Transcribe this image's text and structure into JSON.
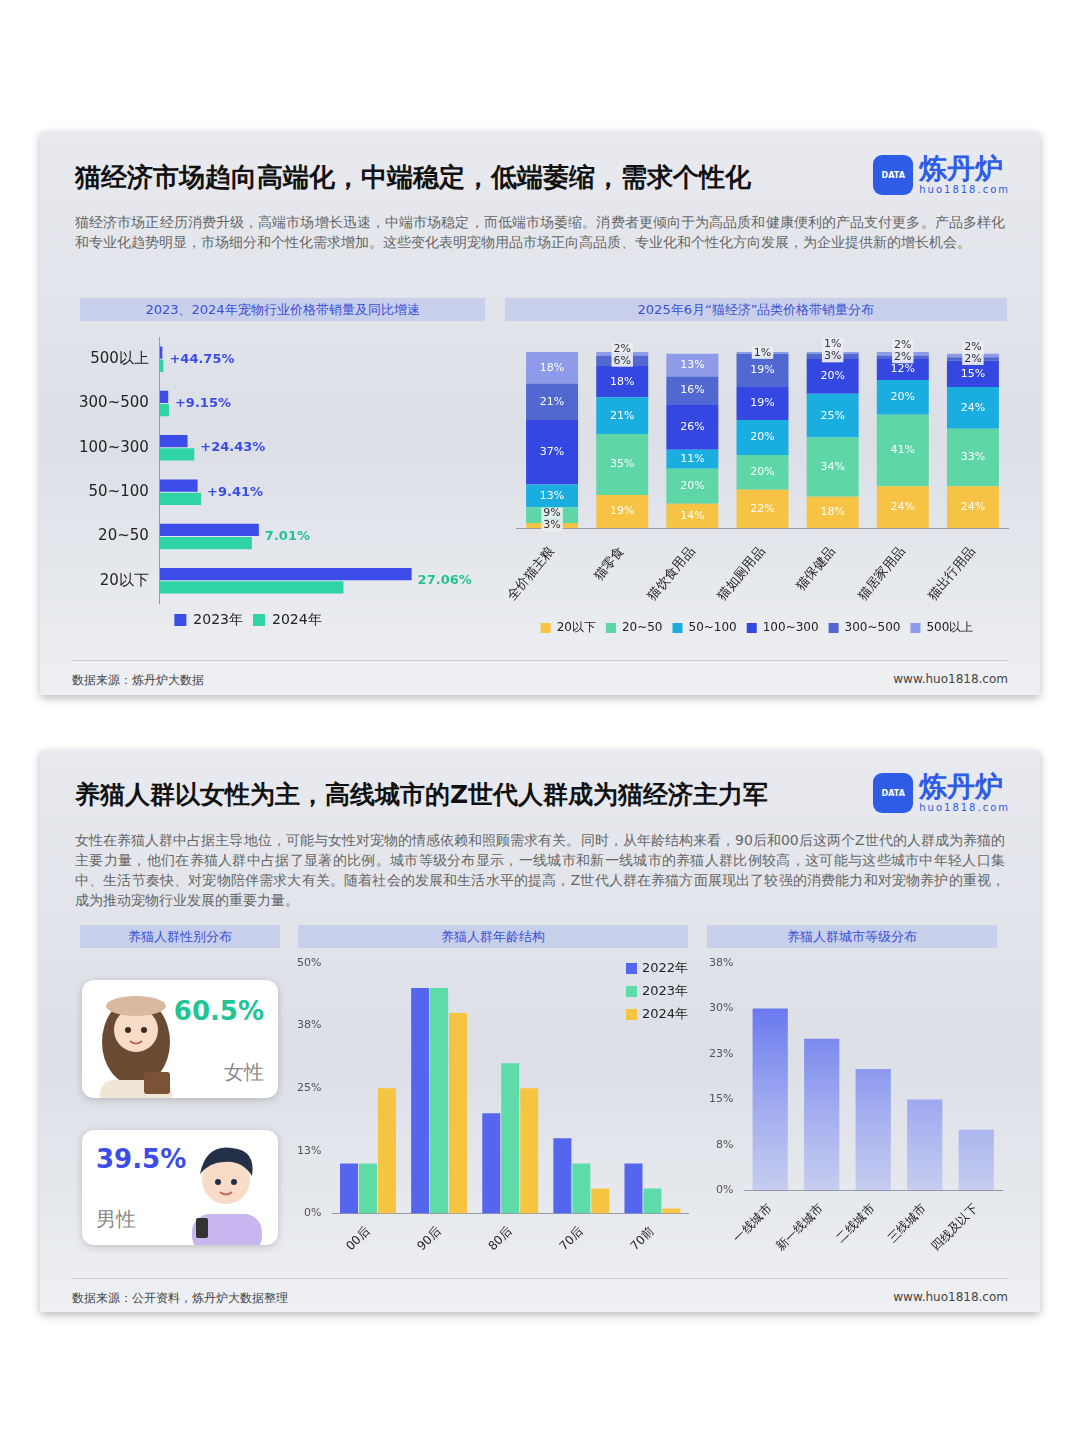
{
  "logo": {
    "name": "炼丹炉",
    "url": "huo1818.com",
    "icon_text": "DATA"
  },
  "cards": [
    {
      "title": "猫经济市场趋向高端化，中端稳定，低端萎缩，需求个性化",
      "text": "猫经济市场正经历消费升级，高端市场增长迅速，中端市场稳定，而低端市场萎缩。消费者更倾向于为高品质和健康便利的产品支付更多。产品多样化和专业化趋势明显，市场细分和个性化需求增加。这些变化表明宠物用品市场正向高品质、专业化和个性化方向发展，为企业提供新的增长机会。",
      "source": "数据来源：炼丹炉大数据",
      "website": "www.huo1818.com"
    },
    {
      "title": "养猫人群以女性为主，高线城市的Z世代人群成为猫经济主力军",
      "text": "女性在养猫人群中占据主导地位，可能与女性对宠物的情感依赖和照顾需求有关。同时，从年龄结构来看，90后和00后这两个Z世代的人群成为养猫的主要力量，他们在养猫人群中占据了显著的比例。城市等级分布显示，一线城市和新一线城市的养猫人群比例较高，这可能与这些城市中年轻人口集中、生活节奏快、对宠物陪伴需求大有关。随着社会的发展和生活水平的提高，Z世代人群在养猫方面展现出了较强的消费能力和对宠物养护的重视，成为推动宠物行业发展的重要力量。",
      "source": "数据来源：公开资料，炼丹炉大数据整理",
      "website": "www.huo1818.com"
    }
  ],
  "gender": {
    "title": "养猫人群性别分布",
    "items": [
      {
        "name": "女性",
        "share": "60.5%",
        "color": "#22c493"
      },
      {
        "name": "男性",
        "share": "39.5%",
        "color": "#3b4ce8"
      }
    ]
  },
  "chart_data": [
    {
      "type": "bar",
      "title": "2023、2024年宠物行业价格带销量及同比增速",
      "orientation": "horizontal",
      "categories": [
        "500以上",
        "300~500",
        "100~300",
        "50~100",
        "20~50",
        "20以下"
      ],
      "series": [
        {
          "name": "2023年",
          "color": "#3b4ce8",
          "values": [
            3,
            10,
            33,
            45,
            118,
            300
          ]
        },
        {
          "name": "2024年",
          "color": "#2fd4a4",
          "values": [
            4.3,
            10.9,
            41.1,
            49.2,
            109.7,
            218.8
          ]
        }
      ],
      "xlim": [
        0,
        310
      ],
      "annotations": [
        {
          "text": "+44.75%",
          "color": "#3b4ce8"
        },
        {
          "text": "+9.15%",
          "color": "#3b4ce8"
        },
        {
          "text": "+24.43%",
          "color": "#3b4ce8"
        },
        {
          "text": "+9.41%",
          "color": "#3b4ce8"
        },
        {
          "text": "7.01%",
          "color": "#22c493"
        },
        {
          "text": "27.06%",
          "color": "#22c493"
        }
      ],
      "tick_labels": "y",
      "grid": false,
      "legend": "bottom"
    },
    {
      "type": "bar",
      "title": "2025年6月“猫经济”品类价格带销量分布",
      "stacked": true,
      "categories": [
        "全价猫主粮",
        "猫零食",
        "猫饮食用品",
        "猫如厕用品",
        "猫保健品",
        "猫居家用品",
        "猫出行用品"
      ],
      "series": [
        {
          "name": "20以下",
          "color": "#f6c344",
          "values": [
            3,
            19,
            14,
            22,
            18,
            24,
            24
          ],
          "value_labels": [
            "3%",
            "19%",
            "14%",
            "22%",
            "18%",
            "24%",
            "24%"
          ]
        },
        {
          "name": "20~50",
          "color": "#5ed6a5",
          "values": [
            9,
            35,
            20,
            20,
            34,
            41,
            33
          ],
          "value_labels": [
            "9%",
            "35%",
            "20%",
            "20%",
            "34%",
            "41%",
            "33%"
          ]
        },
        {
          "name": "50~100",
          "color": "#1aaee0",
          "values": [
            13,
            21,
            11,
            20,
            25,
            20,
            24
          ],
          "value_labels": [
            "13%",
            "21%",
            "11%",
            "20%",
            "25%",
            "20%",
            "24%"
          ]
        },
        {
          "name": "100~300",
          "color": "#3447e0",
          "values": [
            37,
            18,
            26,
            19,
            20,
            12,
            15
          ],
          "value_labels": [
            "37%",
            "18%",
            "26%",
            "19%",
            "20%",
            "12%",
            "15%"
          ]
        },
        {
          "name": "300~500",
          "color": "#5068d0",
          "values": [
            21,
            6,
            16,
            19,
            3,
            2,
            2
          ],
          "value_labels": [
            "21%",
            "6%",
            "16%",
            "19%",
            "3%",
            "2%",
            "2%"
          ]
        },
        {
          "name": "500以上",
          "color": "#8d9be8",
          "values": [
            18,
            2,
            13,
            1,
            1,
            2,
            2
          ],
          "value_labels": [
            "18%",
            "2%",
            "13%",
            "1%",
            "1%",
            "2%",
            "2%"
          ]
        }
      ],
      "ylim": [
        0,
        101
      ],
      "data_labels": true,
      "tick_labels": "x",
      "grid": false,
      "legend": "bottom"
    },
    {
      "type": "bar",
      "title": "养猫人群年龄结构",
      "categories": [
        "00后",
        "90后",
        "80后",
        "70后",
        "70前"
      ],
      "series": [
        {
          "name": "2022年",
          "color": "#5566ee",
          "values": [
            10,
            45,
            20,
            15,
            10
          ]
        },
        {
          "name": "2023年",
          "color": "#5ddba8",
          "values": [
            10,
            45,
            30,
            10,
            5
          ]
        },
        {
          "name": "2024年",
          "color": "#f5c542",
          "values": [
            25,
            40,
            25,
            5,
            1
          ]
        }
      ],
      "ylim": [
        0,
        50
      ],
      "yticks": [
        {
          "value": 0,
          "label": "0%"
        },
        {
          "value": 12.5,
          "label": "13%"
        },
        {
          "value": 25,
          "label": "25%"
        },
        {
          "value": 37.5,
          "label": "38%"
        },
        {
          "value": 50,
          "label": "50%"
        }
      ],
      "grid": false,
      "legend": "upper right"
    },
    {
      "type": "bar",
      "title": "养猫人群城市等级分布",
      "categories": [
        "一线城市",
        "新一线城市",
        "二线城市",
        "三线城市",
        "四线及以下"
      ],
      "values": [
        30,
        25,
        20,
        15,
        10
      ],
      "color": "#4a5cf0",
      "ylim": [
        0,
        37.5
      ],
      "yticks": [
        {
          "value": 0,
          "label": "0%"
        },
        {
          "value": 7.5,
          "label": "8%"
        },
        {
          "value": 15,
          "label": "15%"
        },
        {
          "value": 22.5,
          "label": "23%"
        },
        {
          "value": 30,
          "label": "30%"
        },
        {
          "value": 37.5,
          "label": "38%"
        }
      ],
      "grid": false
    }
  ]
}
